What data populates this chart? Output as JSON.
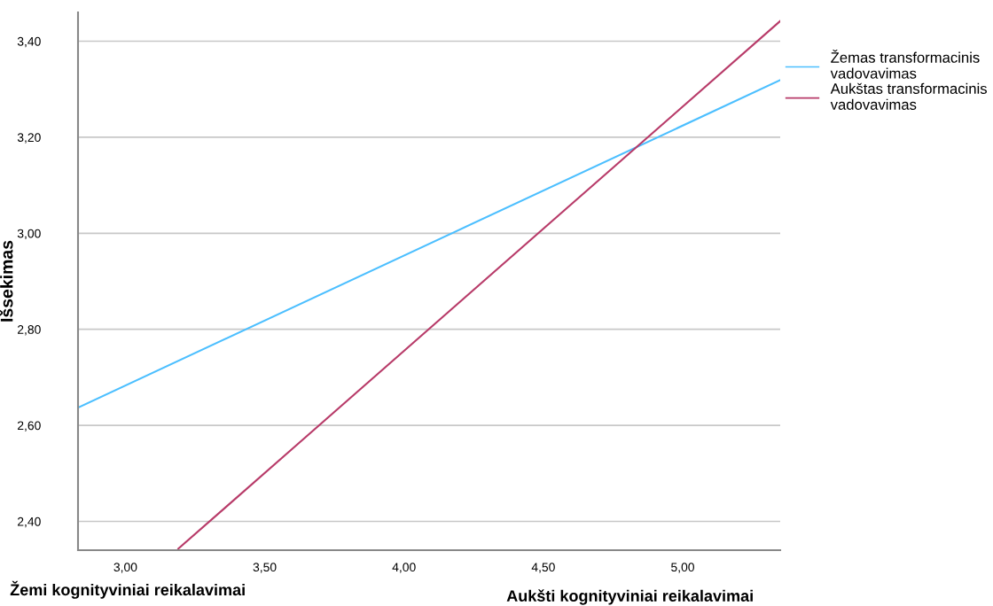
{
  "chart_data": {
    "type": "line",
    "ylabel": "Išsekimas",
    "annotations": [
      "Žemi kognityviniai reikalavimai",
      "Aukšti kognityviniai reikalavimai"
    ],
    "xlim": [
      2.83,
      5.35
    ],
    "ylim": [
      2.34,
      3.46
    ],
    "xticks": [
      {
        "value": 3.0,
        "label": "3,00"
      },
      {
        "value": 3.5,
        "label": "3,50"
      },
      {
        "value": 4.0,
        "label": "4,00"
      },
      {
        "value": 4.5,
        "label": "4,50"
      },
      {
        "value": 5.0,
        "label": "5,00"
      }
    ],
    "yticks": [
      {
        "value": 2.4,
        "label": "2,40"
      },
      {
        "value": 2.6,
        "label": "2,60"
      },
      {
        "value": 2.8,
        "label": "2,80"
      },
      {
        "value": 3.0,
        "label": "3,00"
      },
      {
        "value": 3.2,
        "label": "3,20"
      },
      {
        "value": 3.4,
        "label": "3,40"
      }
    ],
    "grid": "y",
    "legend": "right",
    "marker": "none",
    "line_style": "solid",
    "series": [
      {
        "name": "Žemas transformacinis\nvadovavimas",
        "color": "#4cbfff",
        "x": [
          2.83,
          5.35
        ],
        "values": [
          2.637,
          3.319
        ]
      },
      {
        "name": "Aukštas transformacinis\nvadovavimas",
        "color": "#b83b69",
        "x": [
          3.19,
          5.35
        ],
        "values": [
          2.343,
          3.442
        ]
      }
    ]
  }
}
